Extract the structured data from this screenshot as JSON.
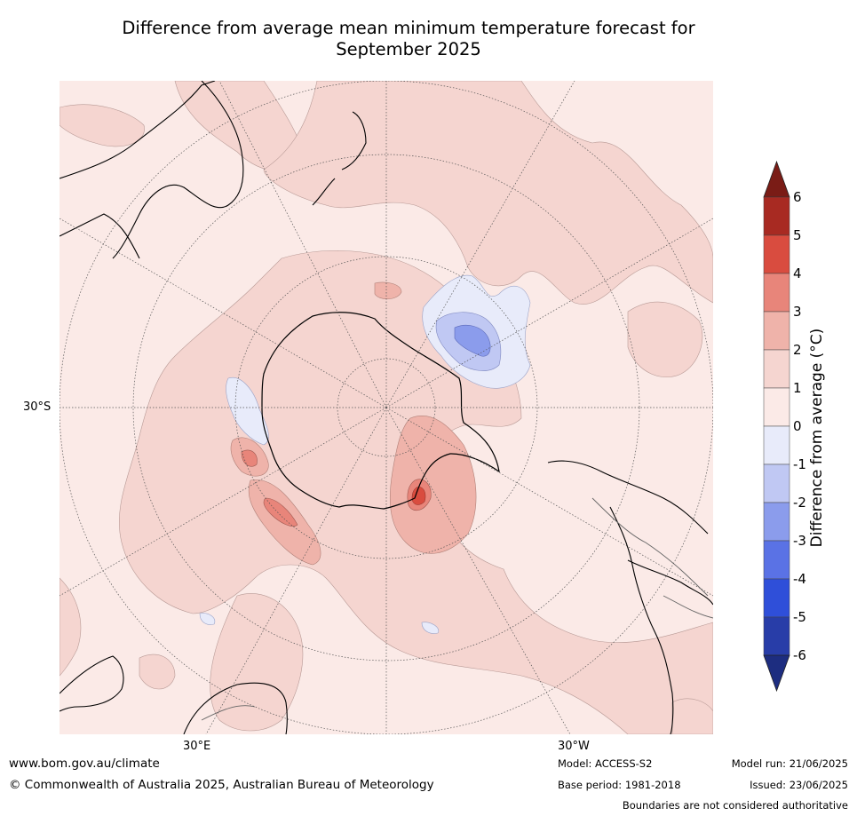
{
  "title_line1": "Difference from average mean minimum temperature forecast for",
  "title_line2": "September 2025",
  "map": {
    "labels": {
      "lat_30s": "30°S",
      "lon_30e": "30°E",
      "lon_30w": "30°W"
    },
    "land_color": "#fbe9e6",
    "background_color": "#fbeae7"
  },
  "colorbar": {
    "label": "Difference from average (°C)",
    "ticks": [
      "6",
      "5",
      "4",
      "3",
      "2",
      "1",
      "0",
      "-1",
      "-2",
      "-3",
      "-4",
      "-5",
      "-6"
    ],
    "colors": [
      "#7a1c16",
      "#a82a22",
      "#d94c3f",
      "#e8857a",
      "#efb3aa",
      "#f5d5d0",
      "#fbeae7",
      "#e8ebfa",
      "#c0c8f3",
      "#8b9cec",
      "#5a72e5",
      "#2f4fd9",
      "#283da8",
      "#1d2d80"
    ]
  },
  "footer": {
    "website": "www.bom.gov.au/climate",
    "copyright": "© Commonwealth of Australia 2025, Australian Bureau of Meteorology",
    "model": "Model: ACCESS-S2",
    "base_period": "Base period: 1981-2018",
    "model_run": "Model run: 21/06/2025",
    "issued": "Issued: 23/06/2025",
    "disclaimer": "Boundaries are not considered authoritative"
  }
}
